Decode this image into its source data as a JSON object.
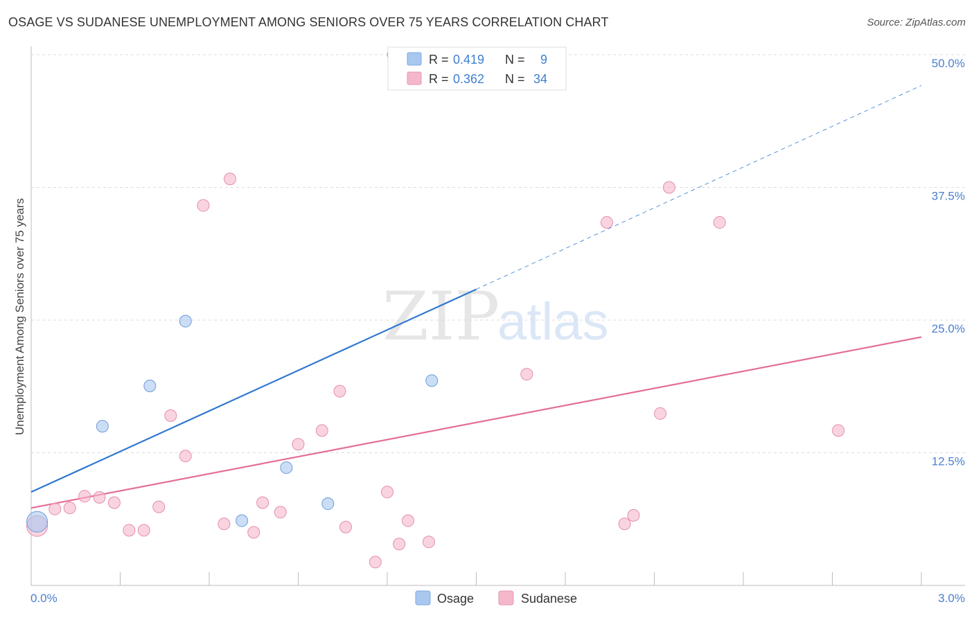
{
  "header": {
    "title": "OSAGE VS SUDANESE UNEMPLOYMENT AMONG SENIORS OVER 75 YEARS CORRELATION CHART",
    "source": "Source: ZipAtlas.com"
  },
  "watermark": {
    "zip": "ZIP",
    "atlas": "atlas"
  },
  "colors": {
    "osage": "#a9c8f0",
    "osage_line": "#2f78d0",
    "sudanese": "#f5b8cb",
    "sudanese_line": "#e46e97",
    "axis_text": "#4a7fcf"
  },
  "chart_data": {
    "type": "scatter",
    "title": "OSAGE VS SUDANESE UNEMPLOYMENT AMONG SENIORS OVER 75 YEARS CORRELATION CHART",
    "xlabel": "",
    "ylabel": "Unemployment Among Seniors over 75 years",
    "xlim": [
      0,
      3.0
    ],
    "ylim": [
      0,
      50
    ],
    "x_tick_labels": [
      "0.0%",
      "3.0%"
    ],
    "y_ticks": [
      12.5,
      25.0,
      37.5,
      50.0
    ],
    "y_tick_labels": [
      "12.5%",
      "25.0%",
      "37.5%",
      "50.0%"
    ],
    "legend_stats": [
      {
        "r_label": "R =",
        "r_value": "0.419",
        "n_label": "N =",
        "n_value": "9"
      },
      {
        "r_label": "R =",
        "r_value": "0.362",
        "n_label": "N =",
        "n_value": "34"
      }
    ],
    "series": [
      {
        "name": "Osage",
        "points": [
          {
            "x": 0.02,
            "y": 6.0,
            "big": true
          },
          {
            "x": 0.24,
            "y": 15.0
          },
          {
            "x": 0.4,
            "y": 18.8
          },
          {
            "x": 0.52,
            "y": 24.9
          },
          {
            "x": 0.71,
            "y": 6.1
          },
          {
            "x": 0.86,
            "y": 11.1
          },
          {
            "x": 1.0,
            "y": 7.7
          },
          {
            "x": 1.22,
            "y": 50.0
          },
          {
            "x": 1.35,
            "y": 19.3
          }
        ],
        "trend": {
          "x0": 0.0,
          "y0": 8.8,
          "x1": 1.5,
          "y1": 27.9,
          "x_ext": 3.0,
          "y_ext": 47.1
        }
      },
      {
        "name": "Sudanese",
        "points": [
          {
            "x": 0.02,
            "y": 5.6,
            "big": true
          },
          {
            "x": 0.08,
            "y": 7.2
          },
          {
            "x": 0.13,
            "y": 7.3
          },
          {
            "x": 0.18,
            "y": 8.4
          },
          {
            "x": 0.23,
            "y": 8.3
          },
          {
            "x": 0.28,
            "y": 7.8
          },
          {
            "x": 0.33,
            "y": 5.2
          },
          {
            "x": 0.38,
            "y": 5.2
          },
          {
            "x": 0.43,
            "y": 7.4
          },
          {
            "x": 0.47,
            "y": 16.0
          },
          {
            "x": 0.52,
            "y": 12.2
          },
          {
            "x": 0.58,
            "y": 35.8
          },
          {
            "x": 0.65,
            "y": 5.8
          },
          {
            "x": 0.67,
            "y": 38.3
          },
          {
            "x": 0.75,
            "y": 5.0
          },
          {
            "x": 0.78,
            "y": 7.8
          },
          {
            "x": 0.84,
            "y": 6.9
          },
          {
            "x": 0.9,
            "y": 13.3
          },
          {
            "x": 0.98,
            "y": 14.6
          },
          {
            "x": 1.04,
            "y": 18.3
          },
          {
            "x": 1.06,
            "y": 5.5
          },
          {
            "x": 1.16,
            "y": 2.2
          },
          {
            "x": 1.2,
            "y": 8.8
          },
          {
            "x": 1.24,
            "y": 3.9
          },
          {
            "x": 1.27,
            "y": 6.1
          },
          {
            "x": 1.34,
            "y": 4.1
          },
          {
            "x": 1.67,
            "y": 19.9
          },
          {
            "x": 1.94,
            "y": 34.2
          },
          {
            "x": 2.0,
            "y": 5.8
          },
          {
            "x": 2.03,
            "y": 6.6
          },
          {
            "x": 2.12,
            "y": 16.2
          },
          {
            "x": 2.15,
            "y": 37.5
          },
          {
            "x": 2.32,
            "y": 34.2
          },
          {
            "x": 2.72,
            "y": 14.6
          }
        ],
        "trend": {
          "x0": 0.0,
          "y0": 7.3,
          "x1": 3.0,
          "y1": 23.4
        }
      }
    ]
  }
}
